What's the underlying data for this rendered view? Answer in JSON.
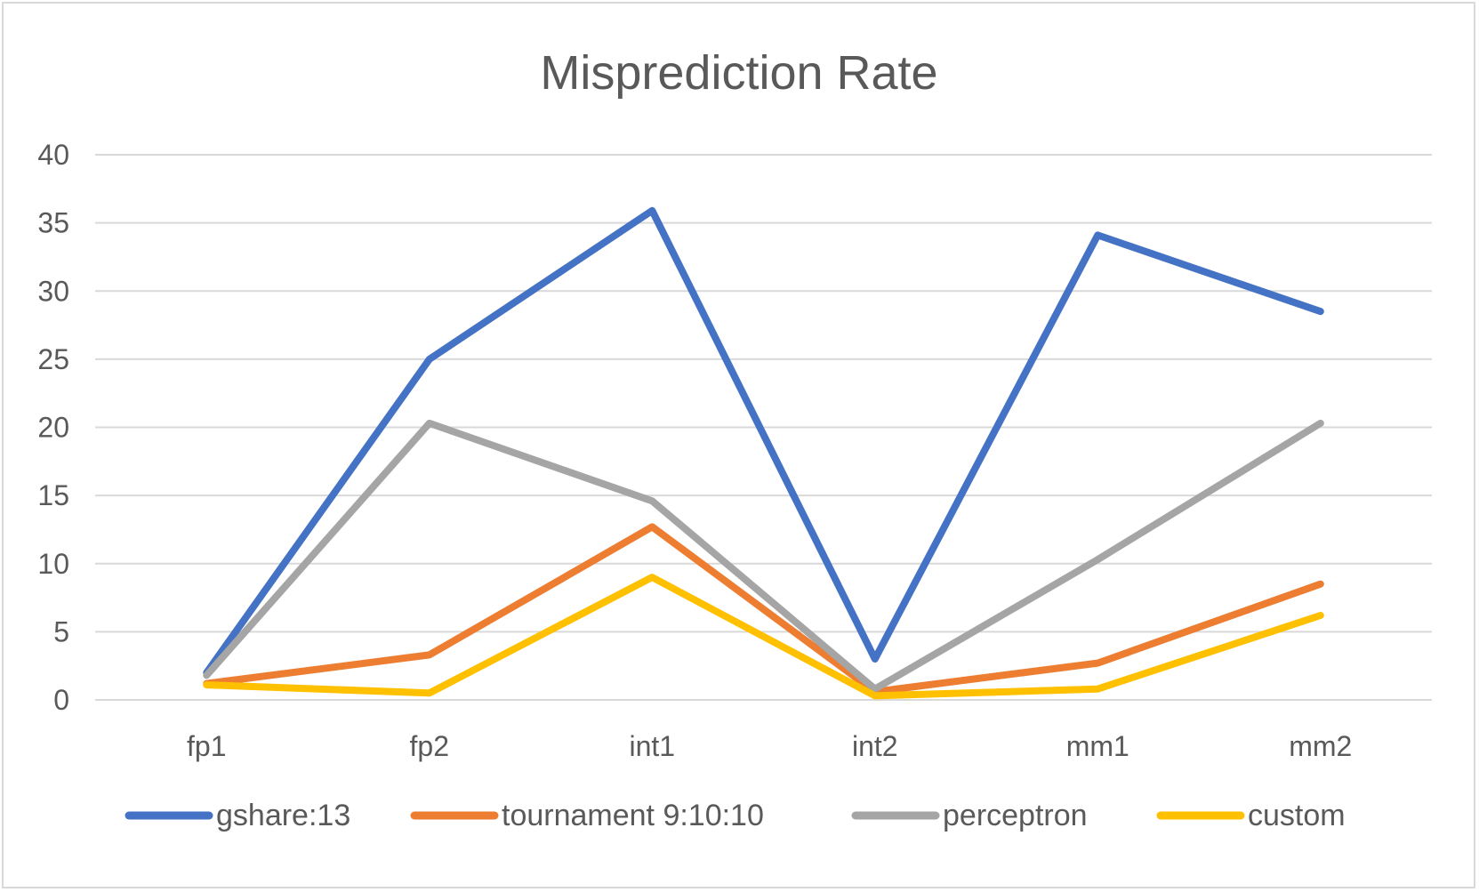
{
  "chart_data": {
    "type": "line",
    "title": "Misprediction Rate",
    "xlabel": "",
    "ylabel": "",
    "categories": [
      "fp1",
      "fp2",
      "int1",
      "int2",
      "mm1",
      "mm2"
    ],
    "ylim": [
      0,
      40
    ],
    "yticks": [
      0,
      5,
      10,
      15,
      20,
      25,
      30,
      35,
      40
    ],
    "grid": true,
    "legend_position": "bottom",
    "series": [
      {
        "name": "gshare:13",
        "color": "#4472C4",
        "values": [
          2.0,
          25.0,
          35.9,
          3.0,
          34.1,
          28.5
        ]
      },
      {
        "name": "tournament 9:10:10",
        "color": "#ED7D31",
        "values": [
          1.2,
          3.3,
          12.7,
          0.6,
          2.7,
          8.5
        ]
      },
      {
        "name": "perceptron",
        "color": "#A5A5A5",
        "values": [
          1.8,
          20.3,
          14.6,
          0.8,
          10.3,
          20.3
        ]
      },
      {
        "name": "custom",
        "color": "#FFC000",
        "values": [
          1.1,
          0.5,
          9.0,
          0.3,
          0.8,
          6.2
        ]
      }
    ]
  }
}
